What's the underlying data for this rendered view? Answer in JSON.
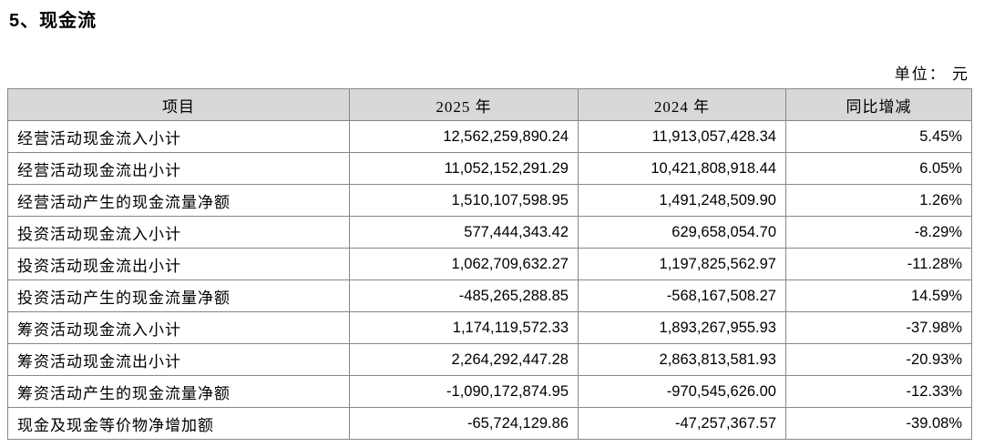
{
  "page": {
    "title": "5、现金流",
    "unit_label": "单位：  元"
  },
  "table": {
    "headers": {
      "item": "项目",
      "y2025": "2025 年",
      "y2024": "2024 年",
      "yoy": "同比增减"
    },
    "rows": [
      {
        "item": "经营活动现金流入小计",
        "y2025": "12,562,259,890.24",
        "y2024": "11,913,057,428.34",
        "yoy": "5.45%"
      },
      {
        "item": "经营活动现金流出小计",
        "y2025": "11,052,152,291.29",
        "y2024": "10,421,808,918.44",
        "yoy": "6.05%"
      },
      {
        "item": "经营活动产生的现金流量净额",
        "y2025": "1,510,107,598.95",
        "y2024": "1,491,248,509.90",
        "yoy": "1.26%"
      },
      {
        "item": "投资活动现金流入小计",
        "y2025": "577,444,343.42",
        "y2024": "629,658,054.70",
        "yoy": "-8.29%"
      },
      {
        "item": "投资活动现金流出小计",
        "y2025": "1,062,709,632.27",
        "y2024": "1,197,825,562.97",
        "yoy": "-11.28%"
      },
      {
        "item": "投资活动产生的现金流量净额",
        "y2025": "-485,265,288.85",
        "y2024": "-568,167,508.27",
        "yoy": "14.59%"
      },
      {
        "item": "筹资活动现金流入小计",
        "y2025": "1,174,119,572.33",
        "y2024": "1,893,267,955.93",
        "yoy": "-37.98%"
      },
      {
        "item": "筹资活动现金流出小计",
        "y2025": "2,264,292,447.28",
        "y2024": "2,863,813,581.93",
        "yoy": "-20.93%"
      },
      {
        "item": "筹资活动产生的现金流量净额",
        "y2025": "-1,090,172,874.95",
        "y2024": "-970,545,626.00",
        "yoy": "-12.33%"
      },
      {
        "item": "现金及现金等价物净增加额",
        "y2025": "-65,724,129.86",
        "y2024": "-47,257,367.57",
        "yoy": "-39.08%"
      }
    ]
  }
}
